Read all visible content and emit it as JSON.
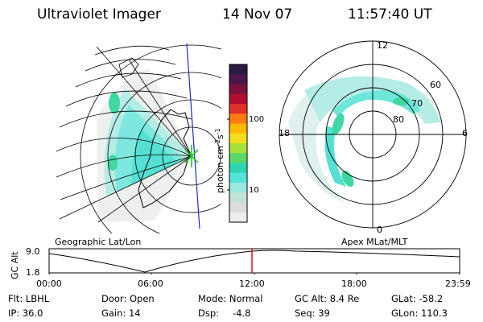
{
  "header": {
    "instrument": "Ultraviolet Imager",
    "date": "14 Nov 07",
    "time": "11:57:40 UT"
  },
  "colorbar": {
    "unit_prefix": "photon cm",
    "exp1": "-2",
    "s": "s",
    "exp2": "-1",
    "ticks": [
      "100",
      "10"
    ],
    "colors": [
      "#2a1a44",
      "#4b154e",
      "#7a1040",
      "#b01030",
      "#e03028",
      "#ff7a12",
      "#ffb800",
      "#f2e020",
      "#a8e03a",
      "#5cd86a",
      "#2fd4b4",
      "#54e4dc",
      "#9ae8e0",
      "#c2e2da",
      "#dcdcdc",
      "#ededed"
    ]
  },
  "left_map": {
    "label": "Geographic Lat/Lon"
  },
  "right_polar": {
    "label": "Apex MLat/MLT",
    "mlt_labels": [
      "12",
      "18",
      "6",
      "0"
    ],
    "lat_labels": [
      "60",
      "70",
      "80"
    ]
  },
  "altitude_plot": {
    "ylabel": "GC Alt",
    "yticks": [
      "9.0",
      "1.8"
    ],
    "xticks": [
      "00:00",
      "06:00",
      "12:00",
      "18:00",
      "23:59"
    ]
  },
  "info": {
    "filter": "Flt: LBHL",
    "ip": "IP: 36.0",
    "door": "Door: Open",
    "gain": "Gain: 14",
    "mode": "Mode: Normal",
    "dsp_label": "Dsp:",
    "dsp_value": "-4.8",
    "gc_alt": "GC Alt: 8.4 Re",
    "seq": "Seq: 39",
    "glat": "GLat: -58.2",
    "glon": "GLon: 110.3"
  }
}
